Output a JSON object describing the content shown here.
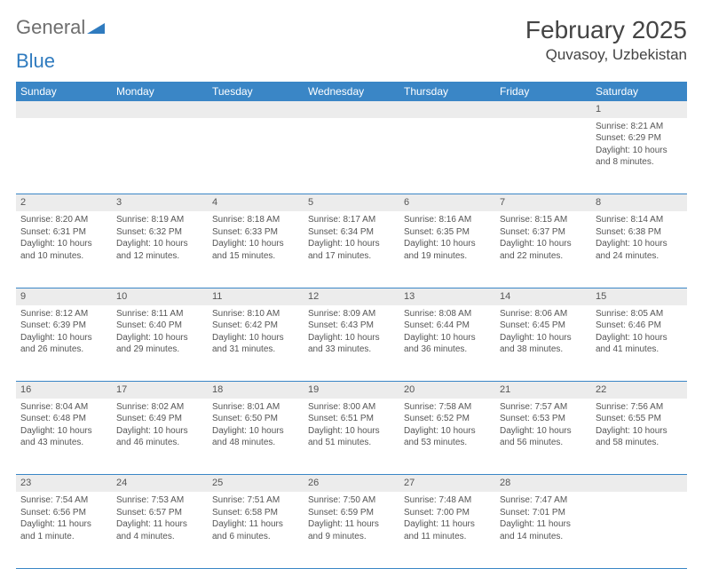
{
  "logo": {
    "word1": "General",
    "word2": "Blue"
  },
  "title": "February 2025",
  "subtitle": "Quvasoy, Uzbekistan",
  "colors": {
    "header_bg": "#3a86c6",
    "header_text": "#ffffff",
    "daynum_bg": "#ececec",
    "border": "#3a86c6",
    "body_text": "#555555",
    "logo_gray": "#6e6e6e",
    "logo_blue": "#2f7bbf"
  },
  "day_headers": [
    "Sunday",
    "Monday",
    "Tuesday",
    "Wednesday",
    "Thursday",
    "Friday",
    "Saturday"
  ],
  "weeks": [
    {
      "nums": [
        "",
        "",
        "",
        "",
        "",
        "",
        "1"
      ],
      "cells": [
        null,
        null,
        null,
        null,
        null,
        null,
        {
          "sunrise": "Sunrise: 8:21 AM",
          "sunset": "Sunset: 6:29 PM",
          "day1": "Daylight: 10 hours",
          "day2": "and 8 minutes."
        }
      ]
    },
    {
      "nums": [
        "2",
        "3",
        "4",
        "5",
        "6",
        "7",
        "8"
      ],
      "cells": [
        {
          "sunrise": "Sunrise: 8:20 AM",
          "sunset": "Sunset: 6:31 PM",
          "day1": "Daylight: 10 hours",
          "day2": "and 10 minutes."
        },
        {
          "sunrise": "Sunrise: 8:19 AM",
          "sunset": "Sunset: 6:32 PM",
          "day1": "Daylight: 10 hours",
          "day2": "and 12 minutes."
        },
        {
          "sunrise": "Sunrise: 8:18 AM",
          "sunset": "Sunset: 6:33 PM",
          "day1": "Daylight: 10 hours",
          "day2": "and 15 minutes."
        },
        {
          "sunrise": "Sunrise: 8:17 AM",
          "sunset": "Sunset: 6:34 PM",
          "day1": "Daylight: 10 hours",
          "day2": "and 17 minutes."
        },
        {
          "sunrise": "Sunrise: 8:16 AM",
          "sunset": "Sunset: 6:35 PM",
          "day1": "Daylight: 10 hours",
          "day2": "and 19 minutes."
        },
        {
          "sunrise": "Sunrise: 8:15 AM",
          "sunset": "Sunset: 6:37 PM",
          "day1": "Daylight: 10 hours",
          "day2": "and 22 minutes."
        },
        {
          "sunrise": "Sunrise: 8:14 AM",
          "sunset": "Sunset: 6:38 PM",
          "day1": "Daylight: 10 hours",
          "day2": "and 24 minutes."
        }
      ]
    },
    {
      "nums": [
        "9",
        "10",
        "11",
        "12",
        "13",
        "14",
        "15"
      ],
      "cells": [
        {
          "sunrise": "Sunrise: 8:12 AM",
          "sunset": "Sunset: 6:39 PM",
          "day1": "Daylight: 10 hours",
          "day2": "and 26 minutes."
        },
        {
          "sunrise": "Sunrise: 8:11 AM",
          "sunset": "Sunset: 6:40 PM",
          "day1": "Daylight: 10 hours",
          "day2": "and 29 minutes."
        },
        {
          "sunrise": "Sunrise: 8:10 AM",
          "sunset": "Sunset: 6:42 PM",
          "day1": "Daylight: 10 hours",
          "day2": "and 31 minutes."
        },
        {
          "sunrise": "Sunrise: 8:09 AM",
          "sunset": "Sunset: 6:43 PM",
          "day1": "Daylight: 10 hours",
          "day2": "and 33 minutes."
        },
        {
          "sunrise": "Sunrise: 8:08 AM",
          "sunset": "Sunset: 6:44 PM",
          "day1": "Daylight: 10 hours",
          "day2": "and 36 minutes."
        },
        {
          "sunrise": "Sunrise: 8:06 AM",
          "sunset": "Sunset: 6:45 PM",
          "day1": "Daylight: 10 hours",
          "day2": "and 38 minutes."
        },
        {
          "sunrise": "Sunrise: 8:05 AM",
          "sunset": "Sunset: 6:46 PM",
          "day1": "Daylight: 10 hours",
          "day2": "and 41 minutes."
        }
      ]
    },
    {
      "nums": [
        "16",
        "17",
        "18",
        "19",
        "20",
        "21",
        "22"
      ],
      "cells": [
        {
          "sunrise": "Sunrise: 8:04 AM",
          "sunset": "Sunset: 6:48 PM",
          "day1": "Daylight: 10 hours",
          "day2": "and 43 minutes."
        },
        {
          "sunrise": "Sunrise: 8:02 AM",
          "sunset": "Sunset: 6:49 PM",
          "day1": "Daylight: 10 hours",
          "day2": "and 46 minutes."
        },
        {
          "sunrise": "Sunrise: 8:01 AM",
          "sunset": "Sunset: 6:50 PM",
          "day1": "Daylight: 10 hours",
          "day2": "and 48 minutes."
        },
        {
          "sunrise": "Sunrise: 8:00 AM",
          "sunset": "Sunset: 6:51 PM",
          "day1": "Daylight: 10 hours",
          "day2": "and 51 minutes."
        },
        {
          "sunrise": "Sunrise: 7:58 AM",
          "sunset": "Sunset: 6:52 PM",
          "day1": "Daylight: 10 hours",
          "day2": "and 53 minutes."
        },
        {
          "sunrise": "Sunrise: 7:57 AM",
          "sunset": "Sunset: 6:53 PM",
          "day1": "Daylight: 10 hours",
          "day2": "and 56 minutes."
        },
        {
          "sunrise": "Sunrise: 7:56 AM",
          "sunset": "Sunset: 6:55 PM",
          "day1": "Daylight: 10 hours",
          "day2": "and 58 minutes."
        }
      ]
    },
    {
      "nums": [
        "23",
        "24",
        "25",
        "26",
        "27",
        "28",
        ""
      ],
      "cells": [
        {
          "sunrise": "Sunrise: 7:54 AM",
          "sunset": "Sunset: 6:56 PM",
          "day1": "Daylight: 11 hours",
          "day2": "and 1 minute."
        },
        {
          "sunrise": "Sunrise: 7:53 AM",
          "sunset": "Sunset: 6:57 PM",
          "day1": "Daylight: 11 hours",
          "day2": "and 4 minutes."
        },
        {
          "sunrise": "Sunrise: 7:51 AM",
          "sunset": "Sunset: 6:58 PM",
          "day1": "Daylight: 11 hours",
          "day2": "and 6 minutes."
        },
        {
          "sunrise": "Sunrise: 7:50 AM",
          "sunset": "Sunset: 6:59 PM",
          "day1": "Daylight: 11 hours",
          "day2": "and 9 minutes."
        },
        {
          "sunrise": "Sunrise: 7:48 AM",
          "sunset": "Sunset: 7:00 PM",
          "day1": "Daylight: 11 hours",
          "day2": "and 11 minutes."
        },
        {
          "sunrise": "Sunrise: 7:47 AM",
          "sunset": "Sunset: 7:01 PM",
          "day1": "Daylight: 11 hours",
          "day2": "and 14 minutes."
        },
        null
      ]
    }
  ]
}
